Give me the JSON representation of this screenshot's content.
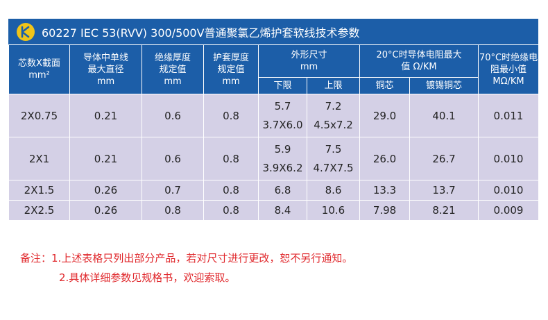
{
  "header": {
    "title": "60227 IEC 53(RVV) 300/500V普通聚氯乙烯护套软线技术参数",
    "logo_letter": "K",
    "colors": {
      "brand": "#1c5ea8",
      "logo": "#f0c419",
      "row": "#d4d0e6",
      "note": "#e0282c"
    }
  },
  "table": {
    "columns": {
      "core_section": [
        "芯数X截面",
        "mm²"
      ],
      "conductor_dia": [
        "导体中单线",
        "最大直径",
        "mm"
      ],
      "insulation": [
        "绝缘厚度",
        "规定值",
        "mm"
      ],
      "sheath": [
        "护套厚度",
        "规定值",
        "mm"
      ],
      "outer_size": [
        "外形尺寸",
        "mm"
      ],
      "outer_lower": "下限",
      "outer_upper": "上限",
      "resistance": [
        "20°C时导体电阻最大",
        "值 Ω/KM"
      ],
      "copper": "铜芯",
      "tinned_copper": "镀锡铜芯",
      "insulation_resistance": [
        "70°C时绝缘电",
        "阻最小值",
        "MΩ/KM"
      ]
    },
    "rows": [
      {
        "core": "2X0.75",
        "dia": "0.21",
        "ins": "0.6",
        "sheath": "0.8",
        "lower": [
          "5.7",
          "3.7X6.0"
        ],
        "upper": [
          "7.2",
          "4.5x7.2"
        ],
        "copper": "29.0",
        "tinned": "40.1",
        "ir": "0.011"
      },
      {
        "core": "2X1",
        "dia": "0.21",
        "ins": "0.6",
        "sheath": "0.8",
        "lower": [
          "5.9",
          "3.9X6.2"
        ],
        "upper": [
          "7.5",
          "4.7X7.5"
        ],
        "copper": "26.0",
        "tinned": "26.7",
        "ir": "0.010"
      },
      {
        "core": "2X1.5",
        "dia": "0.26",
        "ins": "0.7",
        "sheath": "0.8",
        "lower": [
          "6.8"
        ],
        "upper": [
          "8.6"
        ],
        "copper": "13.3",
        "tinned": "13.7",
        "ir": "0.010"
      },
      {
        "core": "2X2.5",
        "dia": "0.26",
        "ins": "0.8",
        "sheath": "0.8",
        "lower": [
          "8.4"
        ],
        "upper": [
          "10.6"
        ],
        "copper": "7.98",
        "tinned": "8.21",
        "ir": "0.009"
      }
    ]
  },
  "notes": {
    "line1": "备注：1.上述表格只列出部分产品，若对尺寸进行更改，恕不另行通知。",
    "line2": "2.具体详细参数见规格书，欢迎索取。"
  }
}
